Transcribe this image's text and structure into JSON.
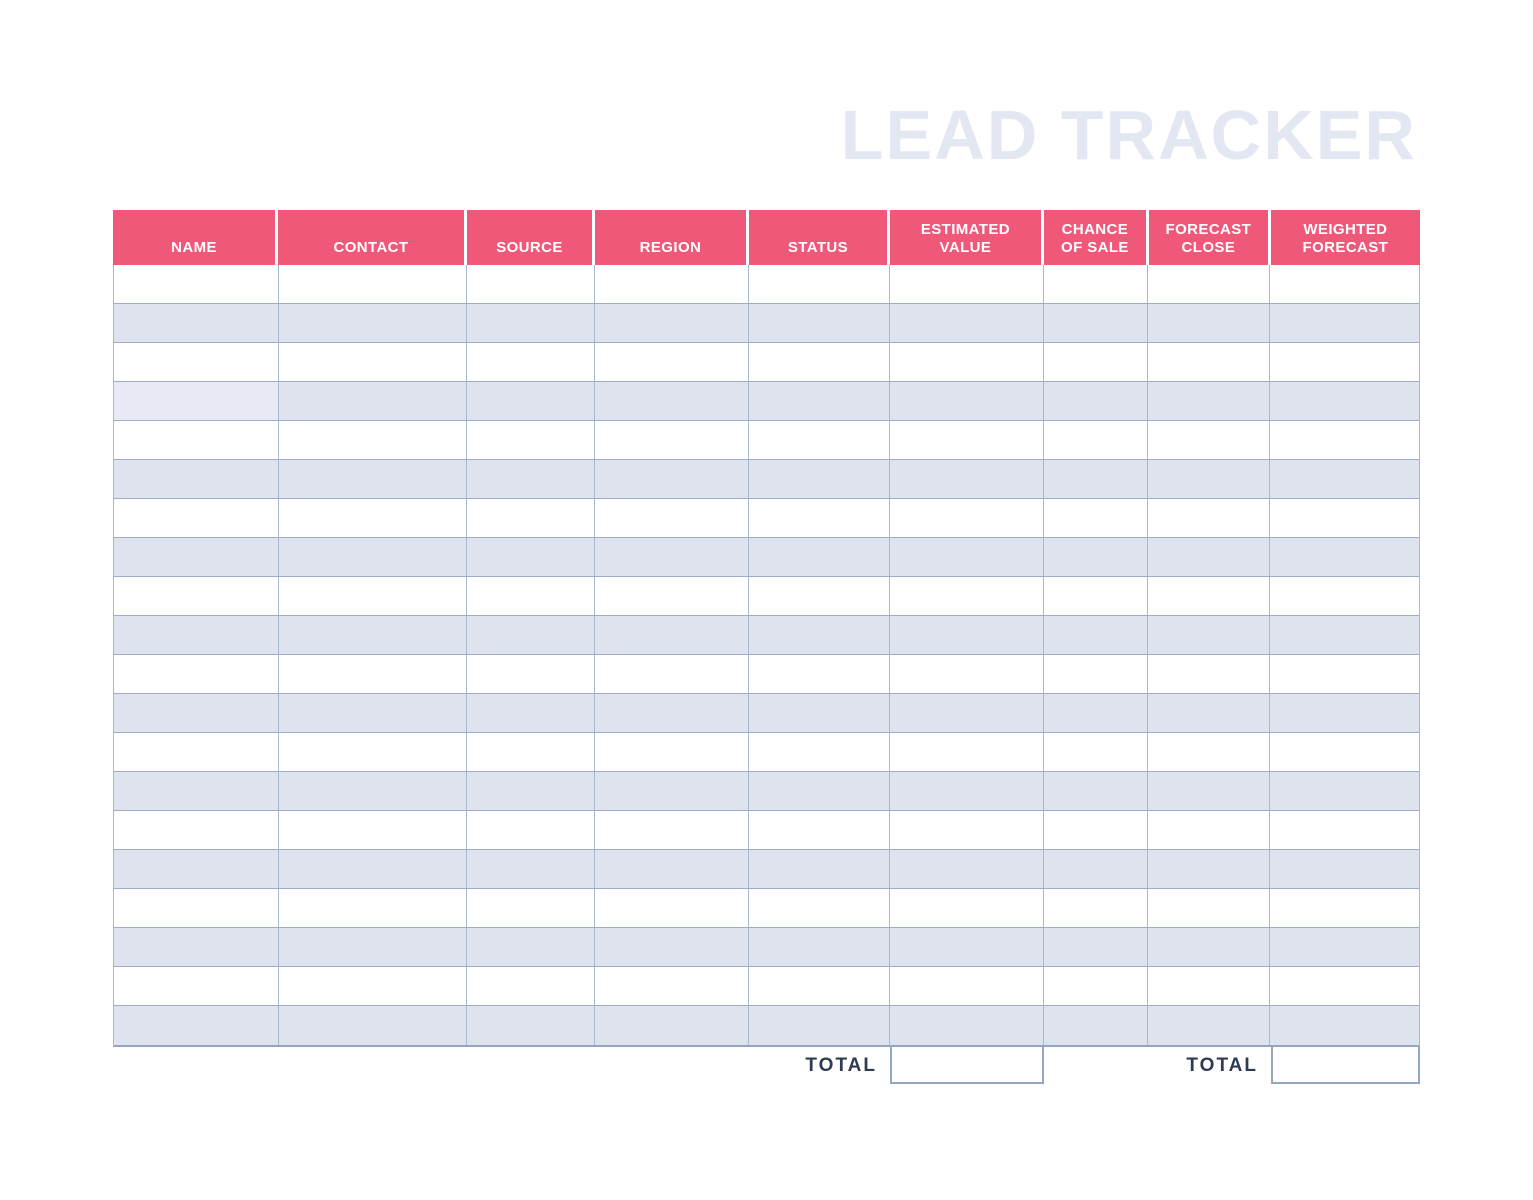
{
  "title": "LEAD TRACKER",
  "table": {
    "columns": [
      {
        "id": "name",
        "label": "NAME"
      },
      {
        "id": "contact",
        "label": "CONTACT"
      },
      {
        "id": "source",
        "label": "SOURCE"
      },
      {
        "id": "region",
        "label": "REGION"
      },
      {
        "id": "status",
        "label": "STATUS"
      },
      {
        "id": "estimated-value",
        "label": "ESTIMATED\nVALUE"
      },
      {
        "id": "chance-of-sale",
        "label": "CHANCE\nOF SALE"
      },
      {
        "id": "forecast-close",
        "label": "FORECAST\nCLOSE"
      },
      {
        "id": "weighted-forecast",
        "label": "WEIGHTED\nFORECAST"
      }
    ],
    "row_count": 20,
    "light_cell": {
      "row": 4,
      "col": 1
    }
  },
  "totals": [
    {
      "label": "TOTAL",
      "value": "",
      "column": "estimated-value"
    },
    {
      "label": "TOTAL",
      "value": "",
      "column": "weighted-forecast"
    }
  ],
  "colors": {
    "header_bg": "#F0587A",
    "header_text": "#FFFFFF",
    "row_bg": "#FFFFFF",
    "row_alt_bg": "#DFE3ED",
    "light_cell_bg": "#E7EAF4",
    "border_h": "#9BADC7",
    "border_v": "#A9B8D0",
    "border_strong": "#93A5BF",
    "box_border": "#93A7C2",
    "title_text": "#E3E7F1",
    "total_text": "#2E3B52",
    "page_bg": "#FFFFFF"
  }
}
